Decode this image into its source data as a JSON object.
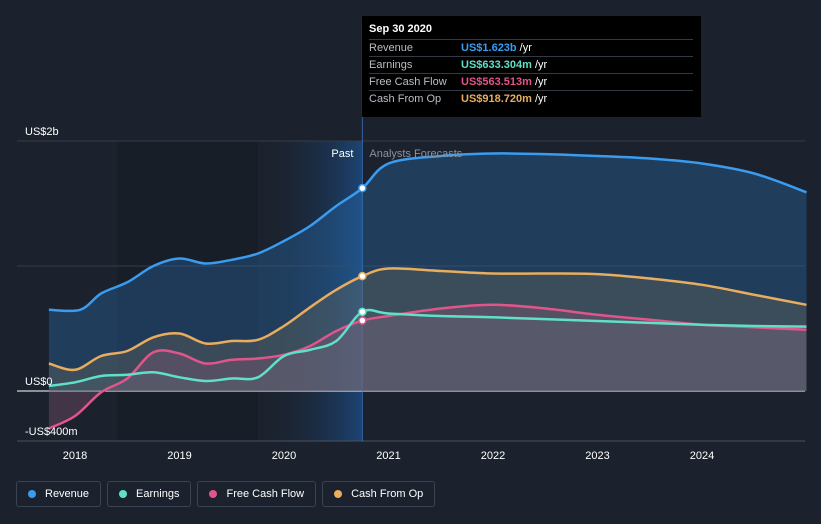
{
  "chart_data": {
    "type": "area",
    "title": "",
    "xlabel": "",
    "ylabel": "",
    "ylim": [
      -400000000,
      2000000000
    ],
    "y_tick_labels": [
      {
        "value": 2000000000,
        "label": "US$2b"
      },
      {
        "value": 0,
        "label": "US$0"
      },
      {
        "value": -400000000,
        "label": "-US$400m"
      }
    ],
    "x_ticks": [
      {
        "value": 2018.0,
        "label": "2018"
      },
      {
        "value": 2019.0,
        "label": "2019"
      },
      {
        "value": 2020.0,
        "label": "2020"
      },
      {
        "value": 2021.0,
        "label": "2021"
      },
      {
        "value": 2022.0,
        "label": "2022"
      },
      {
        "value": 2023.0,
        "label": "2023"
      },
      {
        "value": 2024.0,
        "label": "2024"
      }
    ],
    "xlim": [
      2017.55,
      2025.05
    ],
    "divider_x": 2020.75,
    "past_label": "Past",
    "forecast_label": "Analysts Forecasts",
    "series": [
      {
        "name": "Revenue",
        "color": "#3a9cf0",
        "x": [
          2017.75,
          2018.05,
          2018.25,
          2018.5,
          2018.75,
          2019.0,
          2019.25,
          2019.5,
          2019.75,
          2020.0,
          2020.25,
          2020.5,
          2020.75,
          2021.0,
          2021.5,
          2022.0,
          2022.5,
          2023.0,
          2023.5,
          2024.0,
          2024.5,
          2025.0
        ],
        "values": [
          650000000,
          650000000,
          780000000,
          870000000,
          1000000000,
          1060000000,
          1020000000,
          1050000000,
          1100000000,
          1200000000,
          1320000000,
          1480000000,
          1623000000,
          1820000000,
          1880000000,
          1900000000,
          1895000000,
          1880000000,
          1860000000,
          1820000000,
          1740000000,
          1590000000
        ]
      },
      {
        "name": "Earnings",
        "color": "#5fe0c9",
        "x": [
          2017.75,
          2018.0,
          2018.25,
          2018.5,
          2018.75,
          2019.0,
          2019.25,
          2019.5,
          2019.75,
          2020.0,
          2020.25,
          2020.5,
          2020.75,
          2021.0,
          2021.5,
          2022.0,
          2022.5,
          2023.0,
          2023.5,
          2024.0,
          2024.5,
          2025.0
        ],
        "values": [
          40000000,
          70000000,
          120000000,
          130000000,
          150000000,
          110000000,
          80000000,
          100000000,
          110000000,
          280000000,
          330000000,
          400000000,
          633304000,
          620000000,
          600000000,
          590000000,
          575000000,
          560000000,
          545000000,
          530000000,
          520000000,
          515000000
        ]
      },
      {
        "name": "Free Cash Flow",
        "color": "#e0558a",
        "x": [
          2017.75,
          2018.0,
          2018.25,
          2018.5,
          2018.75,
          2019.0,
          2019.25,
          2019.5,
          2019.75,
          2020.0,
          2020.25,
          2020.5,
          2020.75,
          2021.0,
          2021.5,
          2022.0,
          2022.5,
          2023.0,
          2023.5,
          2024.0,
          2024.5,
          2025.0
        ],
        "values": [
          -300000000,
          -200000000,
          -10000000,
          100000000,
          310000000,
          300000000,
          220000000,
          250000000,
          260000000,
          290000000,
          360000000,
          480000000,
          563513000,
          600000000,
          660000000,
          690000000,
          660000000,
          610000000,
          570000000,
          530000000,
          510000000,
          490000000
        ]
      },
      {
        "name": "Cash From Op",
        "color": "#e8ad5e",
        "x": [
          2017.75,
          2018.0,
          2018.25,
          2018.5,
          2018.75,
          2019.0,
          2019.25,
          2019.5,
          2019.75,
          2020.0,
          2020.25,
          2020.5,
          2020.75,
          2021.0,
          2021.5,
          2022.0,
          2022.5,
          2023.0,
          2023.5,
          2024.0,
          2024.5,
          2025.0
        ],
        "values": [
          220000000,
          170000000,
          280000000,
          320000000,
          430000000,
          460000000,
          380000000,
          400000000,
          410000000,
          520000000,
          670000000,
          810000000,
          918720000,
          980000000,
          960000000,
          940000000,
          940000000,
          935000000,
          900000000,
          850000000,
          770000000,
          690000000
        ]
      }
    ],
    "markers": [
      {
        "series": "Revenue",
        "x": 2020.75,
        "value": 1623000000
      },
      {
        "series": "Cash From Op",
        "x": 2020.75,
        "value": 918720000
      },
      {
        "series": "Earnings",
        "x": 2020.75,
        "value": 633304000
      },
      {
        "series": "Free Cash Flow",
        "x": 2020.75,
        "value": 563513000
      }
    ]
  },
  "tooltip": {
    "title": "Sep 30 2020",
    "rows": [
      {
        "label": "Revenue",
        "value": "US$1.623b",
        "unit": "/yr",
        "color": "#3a9cf0"
      },
      {
        "label": "Earnings",
        "value": "US$633.304m",
        "unit": "/yr",
        "color": "#5fe0c9"
      },
      {
        "label": "Free Cash Flow",
        "value": "US$563.513m",
        "unit": "/yr",
        "color": "#e0558a"
      },
      {
        "label": "Cash From Op",
        "value": "US$918.720m",
        "unit": "/yr",
        "color": "#e8ad5e"
      }
    ]
  },
  "legend": {
    "items": [
      {
        "label": "Revenue",
        "color": "#3a9cf0"
      },
      {
        "label": "Earnings",
        "color": "#5fe0c9"
      },
      {
        "label": "Free Cash Flow",
        "color": "#e0558a"
      },
      {
        "label": "Cash From Op",
        "color": "#e8ad5e"
      }
    ]
  }
}
